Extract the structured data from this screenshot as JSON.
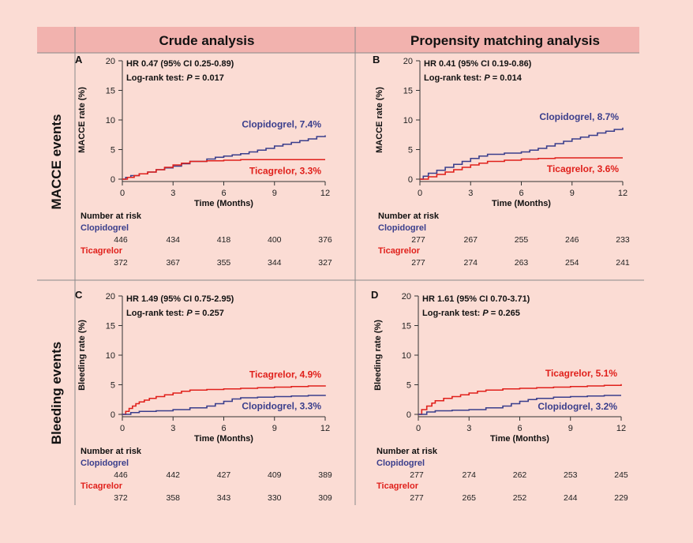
{
  "headers": {
    "col1": "Crude analysis",
    "col2": "Propensity matching analysis",
    "row1": "MACCE events",
    "row2": "Bleeding events"
  },
  "colors": {
    "clopidogrel": "#3a3e8c",
    "ticagrelor": "#e0201b",
    "header_bg": "#f2b2ae",
    "background": "#fbdcd4"
  },
  "chart_data": [
    {
      "type": "line",
      "panel": "A",
      "title": "",
      "ylabel": "MACCE rate (%)",
      "xlabel": "Time (Months)",
      "xticks": [
        0,
        3,
        6,
        9,
        12
      ],
      "yticks": [
        0,
        5,
        10,
        15,
        20
      ],
      "xlim": [
        0,
        12
      ],
      "ylim": [
        0,
        20
      ],
      "hr_text": "HR 0.47 (95% CI 0.25-0.89)",
      "logrank_prefix": "Log-rank test: ",
      "logrank_p_label": "P",
      "logrank_value": " = 0.017",
      "risk_title": "Number at risk",
      "risk_times": [
        0,
        3,
        6,
        9,
        12
      ],
      "series": [
        {
          "name": "Clopidogrel",
          "label": "Clopidogrel, 7.4%",
          "label_pos": "upper",
          "x": [
            0,
            0.2,
            0.5,
            1,
            1.5,
            2,
            2.5,
            3,
            3.5,
            4,
            5,
            5.5,
            6,
            6.5,
            7,
            7.5,
            8,
            8.5,
            9,
            9.5,
            10,
            10.5,
            11,
            11.5,
            12
          ],
          "y": [
            0,
            0.3,
            0.6,
            0.9,
            1.2,
            1.6,
            1.9,
            2.2,
            2.6,
            3.0,
            3.4,
            3.7,
            3.9,
            4.1,
            4.3,
            4.6,
            4.9,
            5.2,
            5.6,
            5.9,
            6.2,
            6.5,
            6.8,
            7.2,
            7.4
          ],
          "risk": [
            446,
            434,
            418,
            400,
            376
          ]
        },
        {
          "name": "Ticagrelor",
          "label": "Ticagrelor, 3.3%",
          "label_pos": "lower",
          "x": [
            0,
            0.3,
            0.7,
            1,
            1.5,
            2,
            2.5,
            3,
            3.5,
            4,
            5,
            6,
            7,
            8,
            9,
            10,
            12
          ],
          "y": [
            0,
            0.3,
            0.6,
            0.9,
            1.2,
            1.6,
            2.0,
            2.4,
            2.7,
            3.0,
            3.1,
            3.2,
            3.3,
            3.3,
            3.3,
            3.3,
            3.3
          ],
          "risk": [
            372,
            367,
            355,
            344,
            327
          ]
        }
      ]
    },
    {
      "type": "line",
      "panel": "B",
      "title": "",
      "ylabel": "MACCE rate (%)",
      "xlabel": "Time (Months)",
      "xticks": [
        0,
        3,
        6,
        9,
        12
      ],
      "yticks": [
        0,
        5,
        10,
        15,
        20
      ],
      "xlim": [
        0,
        12
      ],
      "ylim": [
        0,
        20
      ],
      "hr_text": "HR 0.41 (95% CI 0.19-0.86)",
      "logrank_prefix": "Log-rank test: ",
      "logrank_p_label": "P",
      "logrank_value": " = 0.014",
      "risk_title": "Number at risk",
      "risk_times": [
        0,
        3,
        6,
        9,
        12
      ],
      "series": [
        {
          "name": "Clopidogrel",
          "label": "Clopidogrel, 8.7%",
          "label_pos": "upper",
          "x": [
            0,
            0.2,
            0.5,
            1,
            1.5,
            2,
            2.5,
            3,
            3.5,
            4,
            5,
            6,
            6.5,
            7,
            7.5,
            8,
            8.5,
            9,
            9.5,
            10,
            10.5,
            11,
            11.5,
            12
          ],
          "y": [
            0,
            0.5,
            1.0,
            1.5,
            2.0,
            2.5,
            3.0,
            3.5,
            3.9,
            4.2,
            4.4,
            4.6,
            4.9,
            5.2,
            5.6,
            6.0,
            6.4,
            6.8,
            7.1,
            7.4,
            7.8,
            8.1,
            8.4,
            8.7
          ],
          "risk": [
            277,
            267,
            255,
            246,
            233
          ]
        },
        {
          "name": "Ticagrelor",
          "label": "Ticagrelor, 3.6%",
          "label_pos": "lower",
          "x": [
            0,
            0.5,
            1,
            1.5,
            2,
            2.5,
            3,
            3.5,
            4,
            5,
            6,
            7,
            8,
            9,
            12
          ],
          "y": [
            0,
            0.4,
            0.8,
            1.2,
            1.6,
            2.0,
            2.4,
            2.7,
            3.0,
            3.2,
            3.4,
            3.5,
            3.6,
            3.6,
            3.6
          ],
          "risk": [
            277,
            274,
            263,
            254,
            241
          ]
        }
      ]
    },
    {
      "type": "line",
      "panel": "C",
      "title": "",
      "ylabel": "Bleeding rate (%)",
      "xlabel": "Time (Months)",
      "xticks": [
        0,
        3,
        6,
        9,
        12
      ],
      "yticks": [
        0,
        5,
        10,
        15,
        20
      ],
      "xlim": [
        0,
        12
      ],
      "ylim": [
        0,
        20
      ],
      "hr_text": "HR 1.49 (95% CI 0.75-2.95)",
      "logrank_prefix": "Log-rank test: ",
      "logrank_p_label": "P",
      "logrank_value": " = 0.257",
      "risk_title": "Number at risk",
      "risk_times": [
        0,
        3,
        6,
        9,
        12
      ],
      "series": [
        {
          "name": "Ticagrelor",
          "label": "Ticagrelor, 4.9%",
          "label_pos": "upper",
          "x": [
            0,
            0.2,
            0.4,
            0.6,
            0.8,
            1,
            1.3,
            1.6,
            2,
            2.5,
            3,
            3.5,
            4,
            5,
            6,
            7,
            8,
            9,
            10,
            11,
            12
          ],
          "y": [
            0,
            0.5,
            1.0,
            1.4,
            1.8,
            2.1,
            2.4,
            2.7,
            3.0,
            3.3,
            3.6,
            3.9,
            4.1,
            4.2,
            4.3,
            4.4,
            4.5,
            4.6,
            4.7,
            4.8,
            4.9
          ],
          "risk": [
            372,
            358,
            343,
            330,
            309
          ]
        },
        {
          "name": "Clopidogrel",
          "label": "Clopidogrel, 3.3%",
          "label_pos": "lower",
          "x": [
            0,
            0.5,
            1,
            2,
            3,
            4,
            5,
            5.5,
            6,
            6.5,
            7,
            8,
            9,
            10,
            11,
            12
          ],
          "y": [
            0,
            0.3,
            0.5,
            0.6,
            0.8,
            1.1,
            1.4,
            1.8,
            2.2,
            2.6,
            2.8,
            2.9,
            3.0,
            3.1,
            3.2,
            3.3
          ],
          "risk": [
            446,
            442,
            427,
            409,
            389
          ]
        }
      ]
    },
    {
      "type": "line",
      "panel": "D",
      "title": "",
      "ylabel": "Bleeding rate (%)",
      "xlabel": "Time (Months)",
      "xticks": [
        0,
        3,
        6,
        9,
        12
      ],
      "yticks": [
        0,
        5,
        10,
        15,
        20
      ],
      "xlim": [
        0,
        12
      ],
      "ylim": [
        0,
        20
      ],
      "hr_text": "HR 1.61 (95% CI 0.70-3.71)",
      "logrank_prefix": "Log-rank test: ",
      "logrank_p_label": "P",
      "logrank_value": " = 0.265",
      "risk_title": "Number at risk",
      "risk_times": [
        0,
        3,
        6,
        9,
        12
      ],
      "series": [
        {
          "name": "Ticagrelor",
          "label": "Ticagrelor, 5.1%",
          "label_pos": "upper",
          "x": [
            0,
            0.2,
            0.5,
            0.8,
            1,
            1.5,
            2,
            2.5,
            3,
            3.5,
            4,
            5,
            6,
            7,
            8,
            9,
            10,
            11,
            12
          ],
          "y": [
            0,
            0.8,
            1.4,
            1.9,
            2.3,
            2.7,
            3.0,
            3.3,
            3.6,
            3.9,
            4.1,
            4.3,
            4.4,
            4.5,
            4.6,
            4.7,
            4.8,
            4.9,
            5.1
          ],
          "risk": [
            277,
            265,
            252,
            244,
            229
          ]
        },
        {
          "name": "Clopidogrel",
          "label": "Clopidogrel, 3.2%",
          "label_pos": "lower",
          "x": [
            0,
            0.5,
            1,
            2,
            3,
            4,
            5,
            5.5,
            6,
            6.5,
            7,
            8,
            9,
            10,
            11,
            12
          ],
          "y": [
            0,
            0.4,
            0.6,
            0.7,
            0.8,
            1.1,
            1.4,
            1.8,
            2.2,
            2.5,
            2.7,
            2.9,
            3.0,
            3.1,
            3.2,
            3.2
          ],
          "risk": [
            277,
            274,
            262,
            253,
            245
          ]
        }
      ]
    }
  ]
}
